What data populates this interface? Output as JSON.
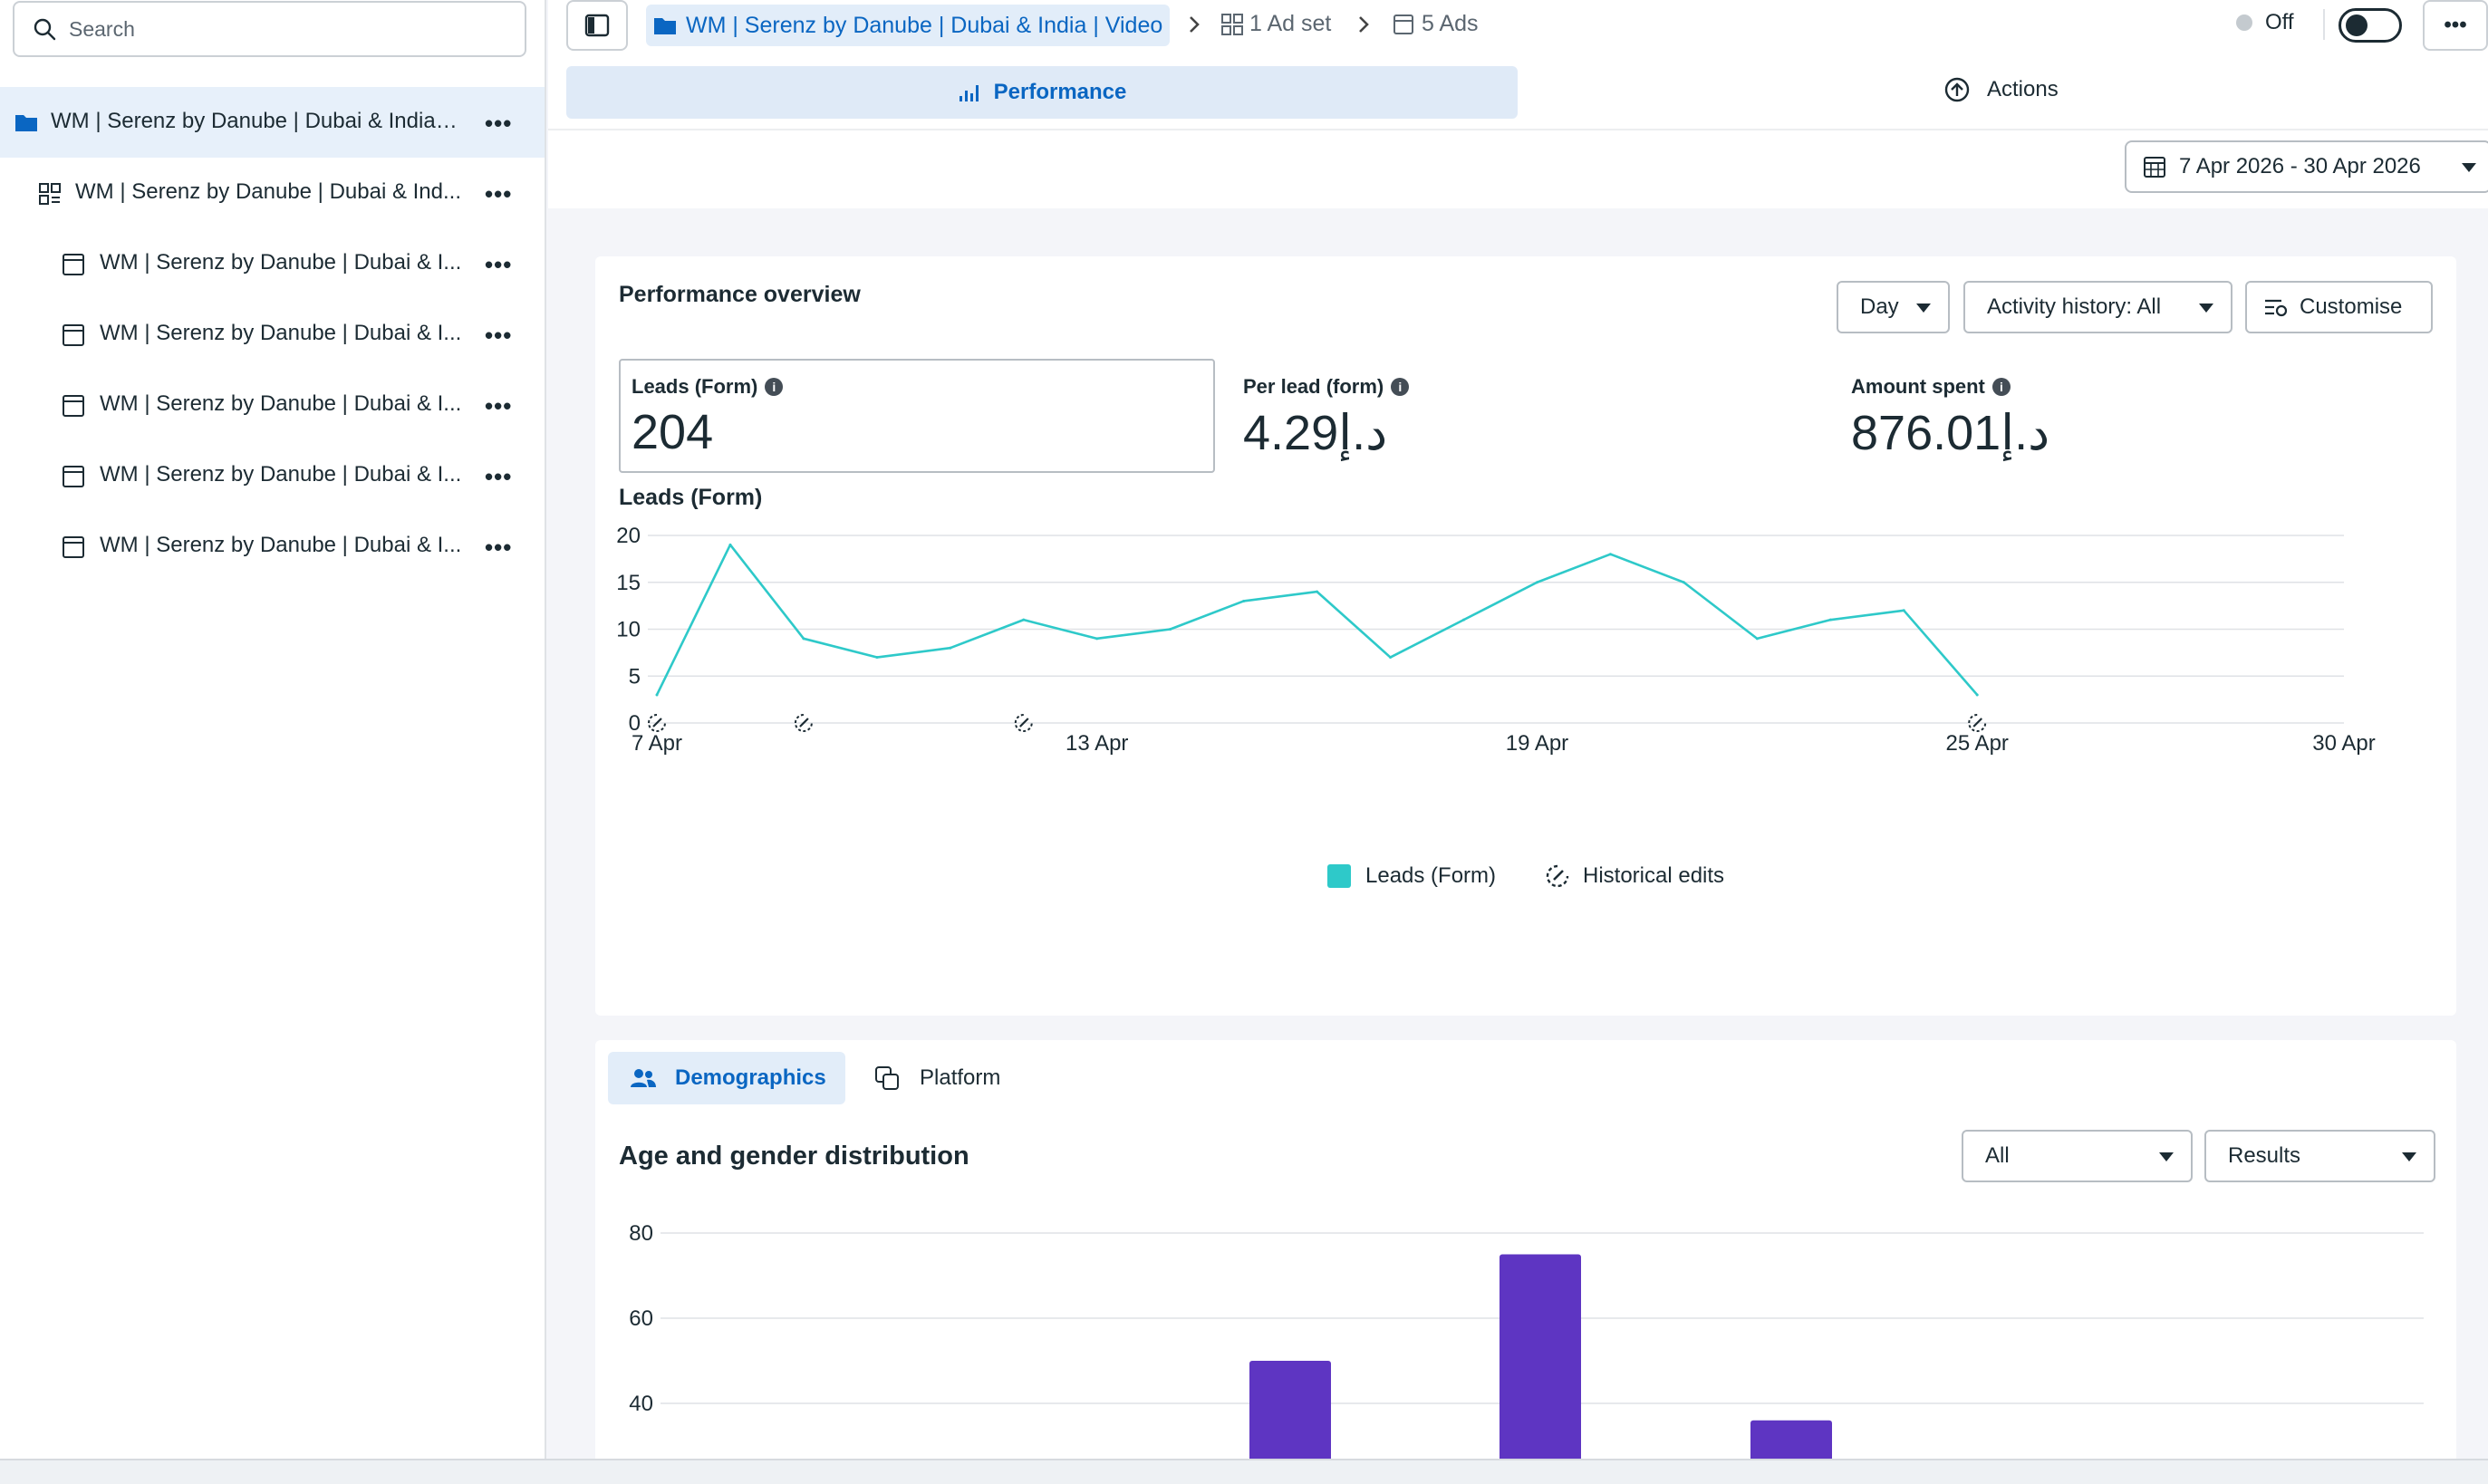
{
  "sidebar": {
    "search_placeholder": "Search",
    "items": [
      {
        "label": "WM | Serenz by Danube | Dubai & India ...",
        "level": "campaign",
        "active": true,
        "icon": "folder-icon"
      },
      {
        "label": "WM | Serenz by Danube | Dubai & Ind...",
        "level": "adset",
        "icon": "adset-grid-icon"
      },
      {
        "label": "WM | Serenz by Danube | Dubai & I...",
        "level": "ad",
        "icon": "ad-window-icon"
      },
      {
        "label": "WM | Serenz by Danube | Dubai & I...",
        "level": "ad",
        "icon": "ad-window-icon"
      },
      {
        "label": "WM | Serenz by Danube | Dubai & I...",
        "level": "ad",
        "icon": "ad-window-icon"
      },
      {
        "label": "WM | Serenz by Danube | Dubai & I...",
        "level": "ad",
        "icon": "ad-window-icon"
      },
      {
        "label": "WM | Serenz by Danube | Dubai & I...",
        "level": "ad",
        "icon": "ad-window-icon"
      }
    ],
    "more_label": "•••"
  },
  "breadcrumb": {
    "campaign": "WM | Serenz by Danube | Dubai & India | Video",
    "adsets": "1 Ad set",
    "ads": "5 Ads"
  },
  "status": {
    "label": "Off",
    "toggle_on": false
  },
  "more_label": "•••",
  "tabs": {
    "performance": "Performance",
    "actions": "Actions"
  },
  "date_range": "7 Apr 2026 - 30 Apr 2026",
  "overview": {
    "title": "Performance overview",
    "granularity": "Day",
    "activity": "Activity history: All",
    "customise": "Customise",
    "metrics": [
      {
        "label": "Leads (Form)",
        "value": "204"
      },
      {
        "label": "Per lead (form)",
        "value": "4.29د.إ"
      },
      {
        "label": "Amount spent",
        "value": "876.01د.إ"
      }
    ],
    "info_icon": "i",
    "chart_label": "Leads (Form)",
    "legend_leads": "Leads (Form)",
    "legend_edits": "Historical edits"
  },
  "chart_data": [
    {
      "type": "line",
      "title": "Leads (Form)",
      "x_ticks": [
        "7 Apr",
        "13 Apr",
        "19 Apr",
        "25 Apr",
        "30 Apr"
      ],
      "y_ticks": [
        0,
        5,
        10,
        15,
        20
      ],
      "ylim": [
        0,
        20
      ],
      "xlim": [
        "7 Apr",
        "30 Apr"
      ],
      "grid": true,
      "legend": "bottom",
      "color": "#2ec9c9",
      "series": [
        {
          "name": "Leads (Form)",
          "x": [
            "7 Apr",
            "8 Apr",
            "9 Apr",
            "10 Apr",
            "11 Apr",
            "12 Apr",
            "13 Apr",
            "14 Apr",
            "15 Apr",
            "16 Apr",
            "17 Apr",
            "18 Apr",
            "19 Apr",
            "20 Apr",
            "21 Apr",
            "22 Apr",
            "23 Apr",
            "24 Apr",
            "25 Apr"
          ],
          "values": [
            3,
            19,
            9,
            7,
            8,
            11,
            9,
            10,
            13,
            14,
            7,
            11,
            15,
            18,
            15,
            9,
            11,
            12,
            3
          ]
        }
      ],
      "historical_edits": [
        "7 Apr",
        "9 Apr",
        "12 Apr",
        "25 Apr"
      ]
    },
    {
      "type": "bar",
      "title": "Age and gender distribution",
      "y_ticks": [
        40,
        60,
        80
      ],
      "ylim": [
        0,
        80
      ],
      "grid": true,
      "color": "#5e35c2",
      "values": [
        50,
        75,
        36
      ]
    }
  ],
  "demographics": {
    "tab_demographics": "Demographics",
    "tab_platform": "Platform",
    "title": "Age and gender distribution",
    "filter_all": "All",
    "filter_results": "Results"
  }
}
